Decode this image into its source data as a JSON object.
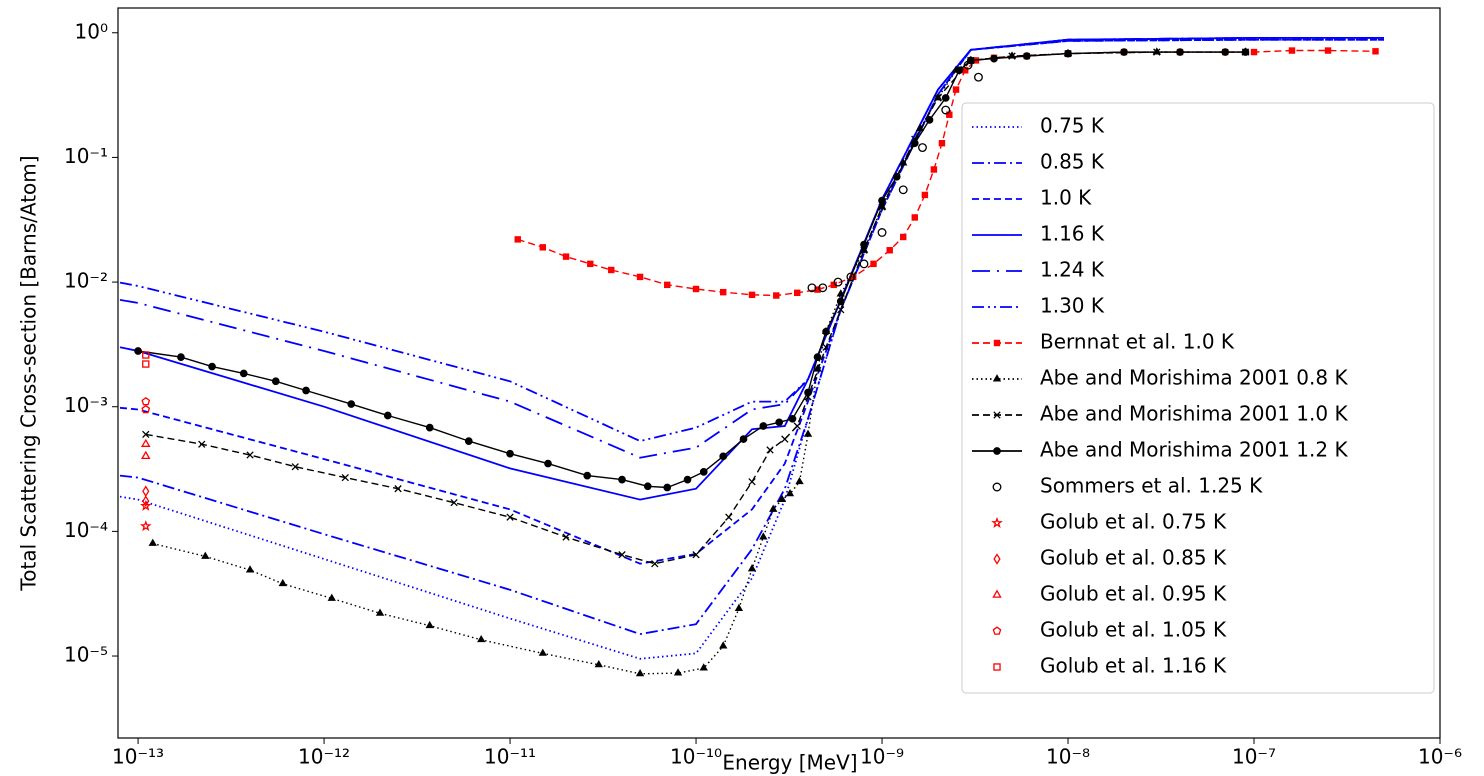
{
  "chart_data": {
    "type": "line",
    "xlabel": "Energy [MeV]",
    "ylabel": "Total Scattering Cross-section [Barns/Atom]",
    "xscale": "log",
    "yscale": "log",
    "xlim": [
      7.8e-14,
      1e-06
    ],
    "ylim": [
      2.2e-06,
      1.58
    ],
    "xticks": [
      {
        "value": 1e-13,
        "label": "10⁻¹³"
      },
      {
        "value": 1e-12,
        "label": "10⁻¹²"
      },
      {
        "value": 1e-11,
        "label": "10⁻¹¹"
      },
      {
        "value": 1e-10,
        "label": "10⁻¹⁰"
      },
      {
        "value": 1e-09,
        "label": "10⁻⁹"
      },
      {
        "value": 1e-08,
        "label": "10⁻⁸"
      },
      {
        "value": 1e-07,
        "label": "10⁻⁷"
      },
      {
        "value": 1e-06,
        "label": "10⁻⁶"
      }
    ],
    "yticks": [
      {
        "value": 1e-05,
        "label": "10⁻⁵"
      },
      {
        "value": 0.0001,
        "label": "10⁻⁴"
      },
      {
        "value": 0.001,
        "label": "10⁻³"
      },
      {
        "value": 0.01,
        "label": "10⁻²"
      },
      {
        "value": 0.1,
        "label": "10⁻¹"
      },
      {
        "value": 1,
        "label": "10⁰"
      }
    ],
    "legend": "upper right",
    "series": [
      {
        "name": "0.75 K",
        "color": "#0000ff",
        "linestyle": "dotted",
        "marker": "none",
        "marker_filled": false,
        "x": [
          8e-14,
          1e-13,
          1e-12,
          1e-11,
          5e-11,
          1e-10,
          2e-10,
          3e-10,
          4e-10,
          6e-10,
          1e-09,
          2e-09,
          3e-09,
          1e-08,
          1e-07,
          5e-07
        ],
        "values": [
          0.00019,
          0.00018,
          6e-05,
          2e-05,
          9.5e-06,
          1.05e-05,
          4.2e-05,
          0.00018,
          0.0008,
          0.006,
          0.038,
          0.32,
          0.73,
          0.86,
          0.88,
          0.88
        ]
      },
      {
        "name": "0.85 K",
        "color": "#0000ff",
        "linestyle": "dashdot",
        "marker": "none",
        "marker_filled": false,
        "x": [
          8e-14,
          1e-13,
          1e-12,
          1e-11,
          5e-11,
          1e-10,
          2e-10,
          3e-10,
          4e-10,
          6e-10,
          1e-09,
          2e-09,
          3e-09,
          1e-08,
          1e-07,
          5e-07
        ],
        "values": [
          0.00028,
          0.00027,
          9.5e-05,
          3.4e-05,
          1.5e-05,
          1.8e-05,
          7.2e-05,
          0.00022,
          0.0008,
          0.006,
          0.038,
          0.32,
          0.73,
          0.86,
          0.88,
          0.88
        ]
      },
      {
        "name": "1.0 K",
        "color": "#0000ff",
        "linestyle": "dashed",
        "marker": "none",
        "marker_filled": false,
        "x": [
          8e-14,
          1e-13,
          1e-12,
          1e-11,
          5e-11,
          1e-10,
          2e-10,
          3e-10,
          4e-10,
          6e-10,
          1e-09,
          2e-09,
          3e-09,
          1e-08,
          1e-07,
          5e-07
        ],
        "values": [
          0.00098,
          0.00095,
          0.00038,
          0.00015,
          5.5e-05,
          6.6e-05,
          0.00015,
          0.00035,
          0.0011,
          0.006,
          0.038,
          0.32,
          0.73,
          0.86,
          0.88,
          0.88
        ]
      },
      {
        "name": "1.16 K",
        "color": "#0000ff",
        "linestyle": "solid",
        "marker": "none",
        "marker_filled": false,
        "x": [
          8e-14,
          1e-13,
          1e-12,
          1e-11,
          5e-11,
          1e-10,
          2e-10,
          3e-10,
          4e-10,
          6e-10,
          1e-09,
          2e-09,
          3e-09,
          1e-08,
          1e-07,
          5e-07
        ],
        "values": [
          0.003,
          0.0028,
          0.001,
          0.00032,
          0.00018,
          0.00022,
          0.00066,
          0.0007,
          0.00166,
          0.0072,
          0.046,
          0.35,
          0.73,
          0.88,
          0.91,
          0.91
        ]
      },
      {
        "name": "1.24 K",
        "color": "#0000ff",
        "linestyle": "longdashdot",
        "marker": "none",
        "marker_filled": false,
        "x": [
          8e-14,
          1e-13,
          1e-12,
          1e-11,
          5e-11,
          1e-10,
          2e-10,
          3e-10,
          4e-10,
          6e-10,
          1e-09,
          2e-09,
          3e-09,
          1e-08,
          1e-07,
          5e-07
        ],
        "values": [
          0.0072,
          0.0068,
          0.0028,
          0.0011,
          0.00039,
          0.00047,
          0.00095,
          0.00105,
          0.00166,
          0.0072,
          0.046,
          0.35,
          0.73,
          0.88,
          0.91,
          0.91
        ]
      },
      {
        "name": "1.30 K",
        "color": "#0000ff",
        "linestyle": "dashdotdot",
        "marker": "none",
        "marker_filled": false,
        "x": [
          8e-14,
          1e-13,
          1e-12,
          1e-11,
          5e-11,
          1e-10,
          2e-10,
          3e-10,
          4e-10,
          6e-10,
          1e-09,
          2e-09,
          3e-09,
          1e-08,
          1e-07,
          5e-07
        ],
        "values": [
          0.0099,
          0.0093,
          0.004,
          0.0016,
          0.00053,
          0.00068,
          0.0011,
          0.0011,
          0.00166,
          0.0072,
          0.046,
          0.35,
          0.73,
          0.88,
          0.91,
          0.91
        ]
      },
      {
        "name": "Bernnat et al. 1.0 K",
        "color": "#ff0000",
        "linestyle": "dashed",
        "marker": "square",
        "marker_filled": true,
        "x": [
          1.1e-11,
          1.5e-11,
          2e-11,
          2.7e-11,
          3.5e-11,
          5e-11,
          7e-11,
          1e-10,
          1.4e-10,
          2e-10,
          2.7e-10,
          3.5e-10,
          4.5e-10,
          5.5e-10,
          7e-10,
          9e-10,
          1.1e-09,
          1.3e-09,
          1.5e-09,
          1.7e-09,
          1.9e-09,
          2.1e-09,
          2.3e-09,
          2.5e-09,
          2.8e-09,
          3.2e-09,
          4e-09,
          6e-09,
          1e-08,
          2e-08,
          4e-08,
          7e-08,
          1e-07,
          1.6e-07,
          2.5e-07,
          4.5e-07
        ],
        "values": [
          0.022,
          0.019,
          0.016,
          0.014,
          0.0125,
          0.011,
          0.0095,
          0.0088,
          0.0083,
          0.0079,
          0.0078,
          0.0082,
          0.0087,
          0.0095,
          0.011,
          0.014,
          0.018,
          0.023,
          0.033,
          0.05,
          0.08,
          0.13,
          0.22,
          0.35,
          0.5,
          0.6,
          0.63,
          0.65,
          0.68,
          0.7,
          0.7,
          0.7,
          0.7,
          0.72,
          0.72,
          0.71
        ]
      },
      {
        "name": "Abe and Morishima 2001 0.8 K",
        "color": "#000000",
        "linestyle": "dotted",
        "marker": "triangle",
        "marker_filled": true,
        "x": [
          1.2e-13,
          2.3e-13,
          4e-13,
          6e-13,
          1.1e-12,
          2e-12,
          3.7e-12,
          7e-12,
          1.5e-11,
          3e-11,
          5e-11,
          8e-11,
          1.1e-10,
          1.4e-10,
          1.7e-10,
          2e-10,
          2.3e-10,
          2.6e-10,
          2.9e-10,
          3.2e-10,
          3.6e-10,
          4e-10,
          4.5e-10,
          5e-10,
          6e-10,
          8e-10,
          1e-09,
          1.3e-09,
          1.6e-09,
          2e-09,
          2.5e-09,
          3e-09,
          5e-09,
          1e-08,
          3e-08,
          9e-08
        ],
        "values": [
          8e-05,
          6.3e-05,
          4.9e-05,
          3.8e-05,
          2.9e-05,
          2.2e-05,
          1.75e-05,
          1.35e-05,
          1.05e-05,
          8.5e-06,
          7.2e-06,
          7.3e-06,
          8e-06,
          1.2e-05,
          2.4e-05,
          5e-05,
          9e-05,
          0.00015,
          0.00018,
          0.0002,
          0.00025,
          0.0006,
          0.002,
          0.004,
          0.008,
          0.018,
          0.04,
          0.09,
          0.17,
          0.3,
          0.5,
          0.6,
          0.65,
          0.68,
          0.7,
          0.7
        ]
      },
      {
        "name": "Abe and Morishima 2001 1.0 K",
        "color": "#000000",
        "linestyle": "dashed",
        "marker": "x",
        "marker_filled": true,
        "x": [
          1.1e-13,
          2.2e-13,
          4e-13,
          7e-13,
          1.3e-12,
          2.5e-12,
          5e-12,
          1e-11,
          2e-11,
          4e-11,
          6e-11,
          1e-10,
          1.5e-10,
          2e-10,
          2.5e-10,
          3e-10,
          3.5e-10,
          4e-10,
          5e-10,
          6e-10,
          8e-10,
          1e-09,
          1.5e-09,
          2e-09,
          3e-09,
          5e-09,
          1e-08,
          3e-08,
          9e-08
        ],
        "values": [
          0.0006,
          0.0005,
          0.00041,
          0.00033,
          0.00027,
          0.00022,
          0.00017,
          0.00013,
          9e-05,
          6.5e-05,
          5.5e-05,
          6.5e-05,
          0.00013,
          0.00025,
          0.00045,
          0.00055,
          0.0007,
          0.0012,
          0.003,
          0.006,
          0.018,
          0.04,
          0.14,
          0.3,
          0.6,
          0.65,
          0.68,
          0.7,
          0.7
        ]
      },
      {
        "name": "Abe and Morishima 2001 1.2 K",
        "color": "#000000",
        "linestyle": "solid",
        "marker": "circle",
        "marker_filled": true,
        "x": [
          1e-13,
          1.7e-13,
          2.5e-13,
          3.7e-13,
          5.5e-13,
          8e-13,
          1.4e-12,
          2.2e-12,
          3.7e-12,
          6e-12,
          1e-11,
          1.6e-11,
          2.6e-11,
          4e-11,
          5.5e-11,
          7e-11,
          9e-11,
          1.1e-10,
          1.4e-10,
          1.8e-10,
          2.3e-10,
          2.8e-10,
          3.3e-10,
          4e-10,
          4.5e-10,
          5e-10,
          6e-10,
          8e-10,
          1e-09,
          1.2e-09,
          1.5e-09,
          1.8e-09,
          2.2e-09,
          2.6e-09,
          3e-09,
          4e-09,
          6e-09,
          1e-08,
          2e-08,
          4e-08,
          7e-08,
          9e-08
        ],
        "values": [
          0.0028,
          0.0025,
          0.0021,
          0.00185,
          0.0016,
          0.00135,
          0.00105,
          0.00085,
          0.00068,
          0.00053,
          0.00042,
          0.00035,
          0.00028,
          0.00026,
          0.00023,
          0.000225,
          0.00026,
          0.0003,
          0.0004,
          0.00055,
          0.0007,
          0.00075,
          0.0008,
          0.0013,
          0.0025,
          0.004,
          0.007,
          0.02,
          0.045,
          0.07,
          0.13,
          0.2,
          0.3,
          0.5,
          0.6,
          0.62,
          0.65,
          0.68,
          0.7,
          0.7,
          0.7,
          0.7
        ]
      },
      {
        "name": "Sommers et al. 1.25 K",
        "color": "#000000",
        "linestyle": "none",
        "marker": "circle",
        "marker_filled": false,
        "x": [
          4.2e-10,
          4.8e-10,
          5.8e-10,
          6.8e-10,
          8e-10,
          1e-09,
          1.3e-09,
          1.65e-09,
          2.2e-09,
          2.9e-09,
          3.3e-09
        ],
        "values": [
          0.009,
          0.009,
          0.01,
          0.011,
          0.014,
          0.025,
          0.055,
          0.12,
          0.24,
          0.55,
          0.44
        ]
      },
      {
        "name": "Golub et al. 0.75 K",
        "color": "#ff0000",
        "linestyle": "none",
        "marker": "star",
        "marker_filled": false,
        "x": [
          1.1e-13,
          1.1e-13
        ],
        "values": [
          0.00011,
          0.00016
        ]
      },
      {
        "name": "Golub et al. 0.85 K",
        "color": "#ff0000",
        "linestyle": "none",
        "marker": "diamond",
        "marker_filled": false,
        "x": [
          1.1e-13,
          1.1e-13
        ],
        "values": [
          0.000175,
          0.00021
        ]
      },
      {
        "name": "Golub et al. 0.95 K",
        "color": "#ff0000",
        "linestyle": "none",
        "marker": "triangle",
        "marker_filled": false,
        "x": [
          1.1e-13,
          1.1e-13
        ],
        "values": [
          0.0004,
          0.0005
        ]
      },
      {
        "name": "Golub et al. 1.05 K",
        "color": "#ff0000",
        "linestyle": "none",
        "marker": "pentagon",
        "marker_filled": false,
        "x": [
          1.1e-13,
          1.1e-13
        ],
        "values": [
          0.00095,
          0.0011
        ]
      },
      {
        "name": "Golub et al. 1.16 K",
        "color": "#ff0000",
        "linestyle": "none",
        "marker": "square",
        "marker_filled": false,
        "x": [
          1.1e-13,
          1.1e-13
        ],
        "values": [
          0.0022,
          0.0026
        ]
      }
    ]
  }
}
